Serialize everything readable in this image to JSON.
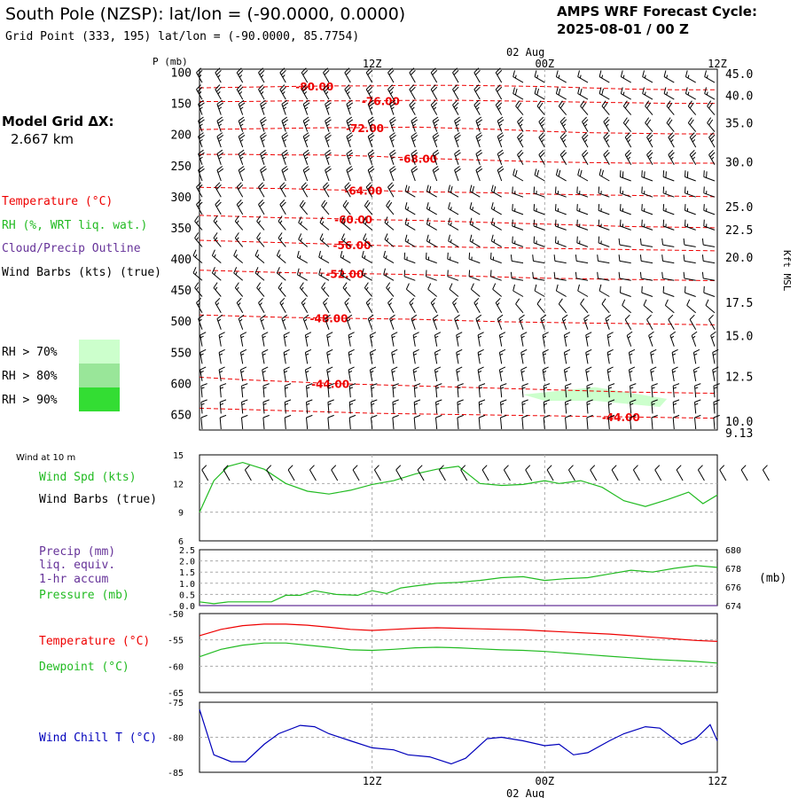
{
  "header": {
    "title": "South Pole (NZSP):  lat/lon = (-90.0000, 0.0000)",
    "subtitle": "Grid Point (333, 195) lat/lon = (-90.0000, 85.7754)",
    "cycle_label": "AMPS WRF Forecast Cycle:",
    "cycle_value": "2025-08-01 / 00  Z"
  },
  "model_grid": {
    "label": "Model Grid ΔX:",
    "value": "2.667 km"
  },
  "time_axis": {
    "ticks": [
      {
        "hour": 12,
        "label": "12Z"
      },
      {
        "hour": 24,
        "label": "00Z"
      },
      {
        "hour": 36,
        "label": "12Z"
      }
    ],
    "date_label": "02 Aug",
    "range_hours": [
      0,
      36
    ]
  },
  "legend": {
    "temperature": "Temperature (°C)",
    "rh": "RH (%, WRT liq. wat.)",
    "cloud": "Cloud/Precip Outline",
    "barbs": "Wind Barbs (kts) (true)",
    "rh_levels": [
      {
        "label": "RH > 70%",
        "color": "#ccffcc"
      },
      {
        "label": "RH > 80%",
        "color": "#99e699"
      },
      {
        "label": "RH > 90%",
        "color": "#33dd33"
      }
    ]
  },
  "colors": {
    "temp": "#ee0000",
    "green": "#22bb22",
    "blue": "#0000bb",
    "purple": "#663399"
  },
  "chart_data": [
    {
      "type": "contour",
      "ylabel": "P (mb)",
      "right_label": "Kft MSL",
      "pressure_range": [
        95,
        675
      ],
      "pressure_ticks": [
        100,
        150,
        200,
        250,
        300,
        350,
        400,
        450,
        500,
        550,
        600,
        650
      ],
      "height_ticks": [
        {
          "p": 102,
          "label": "45.0"
        },
        {
          "p": 137,
          "label": "40.0"
        },
        {
          "p": 181,
          "label": "35.0"
        },
        {
          "p": 244,
          "label": "30.0"
        },
        {
          "p": 316,
          "label": "25.0"
        },
        {
          "p": 353,
          "label": "22.5"
        },
        {
          "p": 397,
          "label": "20.0"
        },
        {
          "p": 470,
          "label": "17.5"
        },
        {
          "p": 523,
          "label": "15.0"
        },
        {
          "p": 589,
          "label": "12.5"
        },
        {
          "p": 661,
          "label": "10.0"
        },
        {
          "p": 679,
          "label": "9.13"
        }
      ],
      "isotherms": [
        {
          "value": -80,
          "label": "-80.00",
          "label_hour": 8,
          "p": [
            125,
            124,
            123,
            122,
            122,
            121,
            121,
            122,
            123,
            125,
            127,
            128,
            128
          ]
        },
        {
          "value": -76,
          "label": "-76.00",
          "label_hour": 12.6,
          "p": [
            147,
            147,
            146,
            146,
            146,
            145,
            145,
            146,
            147,
            148,
            149,
            150,
            150
          ]
        },
        {
          "value": -72,
          "label": "-72.00",
          "label_hour": 11.5,
          "p": [
            192,
            191,
            190,
            189,
            189,
            188,
            190,
            192,
            195,
            197,
            198,
            199,
            199
          ]
        },
        {
          "value": -68,
          "label": "-68.00",
          "label_hour": 15.2,
          "p": [
            232,
            232,
            233,
            233,
            235,
            238,
            240,
            242,
            244,
            245,
            246,
            246,
            246
          ]
        },
        {
          "value": -64,
          "label": "-64.00",
          "label_hour": 11.4,
          "p": [
            285,
            286,
            287,
            289,
            290,
            292,
            293,
            294,
            296,
            297,
            298,
            299,
            300
          ]
        },
        {
          "value": -60,
          "label": "-60.00",
          "label_hour": 10.7,
          "p": [
            330,
            332,
            334,
            335,
            337,
            338,
            340,
            342,
            344,
            346,
            348,
            349,
            350
          ]
        },
        {
          "value": -56,
          "label": "-56.00",
          "label_hour": 10.6,
          "p": [
            370,
            372,
            374,
            376,
            378,
            380,
            381,
            382,
            383,
            384,
            385,
            386,
            387
          ]
        },
        {
          "value": -52,
          "label": "-52.00",
          "label_hour": 10.1,
          "p": [
            418,
            420,
            422,
            423,
            424,
            425,
            427,
            429,
            431,
            432,
            433,
            434,
            435
          ]
        },
        {
          "value": -48,
          "label": "-48.00",
          "label_hour": 9.0,
          "p": [
            490,
            492,
            494,
            495,
            496,
            497,
            499,
            501,
            502,
            503,
            504,
            505,
            506
          ]
        },
        {
          "value": -44,
          "label": "-44.00",
          "label_hour": 9.1,
          "p": [
            590,
            594,
            597,
            600,
            602,
            604,
            606,
            608,
            610,
            612,
            614,
            615,
            616
          ]
        },
        {
          "value": -44,
          "label": "-44.00",
          "label_hour": 29.3,
          "p": [
            640,
            642,
            644,
            646,
            648,
            649,
            650,
            651,
            652,
            653,
            654,
            655,
            656
          ]
        }
      ],
      "rh_region": {
        "level": 70,
        "outline": [
          [
            22.5,
            618
          ],
          [
            27.5,
            606
          ],
          [
            32.5,
            625
          ],
          [
            32.0,
            638
          ],
          [
            27.5,
            628
          ],
          [
            24.0,
            628
          ]
        ]
      },
      "barb_levels": [
        108,
        135,
        160,
        187,
        212,
        240,
        266,
        292,
        320,
        345,
        372,
        398,
        426,
        452,
        478,
        505,
        532,
        560,
        588,
        614,
        640,
        665
      ],
      "barb_hours": [
        0,
        1.5,
        3,
        4.5,
        6,
        7.5,
        9,
        10.5,
        12,
        13.5,
        15,
        16.5,
        18,
        19.5,
        21,
        22.5,
        24,
        25.5,
        27,
        28.5,
        30,
        31.5,
        33,
        34.5,
        36
      ],
      "wind_kts": [
        [
          25,
          20,
          20,
          15,
          15
        ],
        [
          25,
          25,
          20,
          20,
          15
        ],
        [
          25,
          25,
          25,
          20,
          20
        ],
        [
          25,
          25,
          25,
          25,
          20
        ],
        [
          25,
          25,
          25,
          25,
          25
        ],
        [
          25,
          25,
          20,
          20,
          25
        ],
        [
          20,
          20,
          20,
          20,
          20
        ],
        [
          20,
          20,
          20,
          15,
          15
        ],
        [
          20,
          20,
          15,
          15,
          15
        ],
        [
          15,
          15,
          15,
          15,
          15
        ],
        [
          15,
          15,
          15,
          15,
          10
        ],
        [
          15,
          15,
          15,
          10,
          10
        ],
        [
          15,
          15,
          10,
          10,
          10
        ],
        [
          15,
          15,
          10,
          10,
          10
        ],
        [
          15,
          15,
          15,
          10,
          10
        ],
        [
          15,
          15,
          15,
          15,
          10
        ],
        [
          15,
          15,
          15,
          15,
          15
        ],
        [
          15,
          15,
          15,
          15,
          15
        ],
        [
          15,
          15,
          15,
          15,
          15
        ],
        [
          15,
          15,
          15,
          15,
          15
        ],
        [
          15,
          15,
          15,
          15,
          15
        ],
        [
          10,
          10,
          10,
          10,
          10
        ]
      ],
      "wind_dir_deg": [
        [
          330,
          330,
          330,
          300,
          300
        ],
        [
          330,
          330,
          330,
          300,
          300
        ],
        [
          340,
          340,
          330,
          320,
          320
        ],
        [
          340,
          340,
          340,
          330,
          320
        ],
        [
          340,
          340,
          340,
          330,
          330
        ],
        [
          340,
          340,
          340,
          330,
          330
        ],
        [
          340,
          340,
          340,
          300,
          290
        ],
        [
          330,
          330,
          300,
          290,
          290
        ],
        [
          330,
          320,
          300,
          290,
          290
        ],
        [
          320,
          310,
          300,
          290,
          290
        ],
        [
          320,
          310,
          300,
          290,
          280
        ],
        [
          310,
          300,
          290,
          280,
          280
        ],
        [
          310,
          300,
          290,
          280,
          280
        ],
        [
          320,
          320,
          310,
          300,
          290
        ],
        [
          330,
          330,
          330,
          320,
          310
        ],
        [
          340,
          340,
          340,
          340,
          330
        ],
        [
          350,
          350,
          350,
          350,
          340
        ],
        [
          350,
          350,
          350,
          350,
          350
        ],
        [
          350,
          350,
          350,
          350,
          350
        ],
        [
          355,
          355,
          355,
          355,
          355
        ],
        [
          355,
          355,
          355,
          355,
          355
        ],
        [
          355,
          355,
          355,
          355,
          355
        ]
      ]
    },
    {
      "type": "line",
      "title": "Wind at 10 m",
      "series": [
        {
          "name": "Wind Spd (kts)",
          "color": "#22bb22",
          "x": [
            0,
            1,
            2,
            3,
            4.5,
            6,
            7.5,
            9,
            10.5,
            12,
            13.5,
            15,
            16.5,
            18,
            19.5,
            21,
            22.5,
            24,
            25,
            26.5,
            28,
            29.5,
            31,
            32.5,
            34,
            35,
            36
          ],
          "y": [
            9.0,
            12.3,
            13.8,
            14.2,
            13.5,
            12.0,
            11.2,
            10.9,
            11.3,
            11.9,
            12.3,
            13.0,
            13.5,
            13.8,
            12.0,
            11.8,
            11.9,
            12.3,
            12.0,
            12.3,
            11.6,
            10.2,
            9.6,
            10.3,
            11.1,
            9.9,
            10.8
          ]
        }
      ],
      "barbs_label": "Wind Barbs (true)",
      "barb_kts": 10,
      "barb_dir_deg": 330,
      "ylim": [
        6,
        15
      ],
      "yticks": [
        6,
        9,
        12,
        15
      ]
    },
    {
      "type": "line",
      "series": [
        {
          "name": "Precip (mm)",
          "color": "#663399",
          "axis": "left",
          "x": [
            0,
            36
          ],
          "y": [
            0,
            0
          ]
        },
        {
          "name": "Pressure (mb)",
          "color": "#22bb22",
          "axis": "right",
          "x": [
            0,
            1,
            2,
            3.5,
            5,
            6,
            7,
            8,
            9.5,
            11,
            12,
            13,
            14,
            15,
            16.5,
            18,
            19.5,
            21,
            22.5,
            24,
            25.5,
            27,
            28.5,
            30,
            31.5,
            33,
            34.5,
            36
          ],
          "y": [
            674.4,
            674.2,
            674.4,
            674.4,
            674.4,
            675.1,
            675.1,
            675.6,
            675.2,
            675.1,
            675.6,
            675.3,
            675.9,
            676.1,
            676.4,
            676.5,
            676.7,
            677.0,
            677.1,
            676.7,
            676.9,
            677.0,
            677.4,
            677.8,
            677.6,
            678.0,
            678.3,
            678.1
          ]
        }
      ],
      "left_labels": [
        "Precip (mm)",
        "liq. equiv.",
        "1-hr accum"
      ],
      "right_axis_label": "(mb)",
      "ylim_left": [
        0,
        2.5
      ],
      "yticks_left": [
        "0.0",
        "0.5",
        "1.0",
        "1.5",
        "2.0",
        "2.5"
      ],
      "ylim_right": [
        674,
        680
      ],
      "yticks_right": [
        "674",
        "676",
        "678",
        "680"
      ]
    },
    {
      "type": "line",
      "series": [
        {
          "name": "Temperature (°C)",
          "color": "#ee0000",
          "x": [
            0,
            1.5,
            3,
            4.5,
            6,
            7.5,
            9,
            10.5,
            12,
            13.5,
            15,
            16.5,
            18,
            19.5,
            21,
            22.5,
            24,
            25.5,
            27,
            28.5,
            30,
            31.5,
            33,
            34.5,
            36
          ],
          "y": [
            -54.2,
            -53.0,
            -52.3,
            -52.0,
            -52.0,
            -52.2,
            -52.6,
            -53.0,
            -53.2,
            -53.0,
            -52.8,
            -52.7,
            -52.8,
            -52.9,
            -53.0,
            -53.1,
            -53.3,
            -53.5,
            -53.7,
            -53.9,
            -54.2,
            -54.5,
            -54.8,
            -55.1,
            -55.3
          ]
        },
        {
          "name": "Dewpoint (°C)",
          "color": "#22bb22",
          "x": [
            0,
            1.5,
            3,
            4.5,
            6,
            7.5,
            9,
            10.5,
            12,
            13.5,
            15,
            16.5,
            18,
            19.5,
            21,
            22.5,
            24,
            25.5,
            27,
            28.5,
            30,
            31.5,
            33,
            34.5,
            36
          ],
          "y": [
            -58.2,
            -56.8,
            -56.0,
            -55.6,
            -55.6,
            -56.0,
            -56.4,
            -56.9,
            -57.0,
            -56.8,
            -56.5,
            -56.4,
            -56.5,
            -56.7,
            -56.9,
            -57.0,
            -57.2,
            -57.5,
            -57.8,
            -58.1,
            -58.4,
            -58.7,
            -58.9,
            -59.1,
            -59.4
          ]
        }
      ],
      "ylim": [
        -65,
        -50
      ],
      "yticks": [
        -65,
        -60,
        -55,
        -50
      ]
    },
    {
      "type": "line",
      "series": [
        {
          "name": "Wind Chill T (°C)",
          "color": "#0000bb",
          "x": [
            0,
            1,
            2.2,
            3.2,
            4.5,
            5.5,
            7,
            8,
            9,
            10.5,
            12,
            13.5,
            14.5,
            16,
            17.5,
            18.5,
            20,
            21,
            22.5,
            24,
            25,
            26,
            27,
            28.5,
            29.5,
            31,
            32,
            33.5,
            34.5,
            35.5,
            36
          ],
          "y": [
            -76.0,
            -82.5,
            -83.5,
            -83.5,
            -81.0,
            -79.5,
            -78.3,
            -78.5,
            -79.5,
            -80.5,
            -81.5,
            -81.8,
            -82.5,
            -82.8,
            -83.8,
            -83.0,
            -80.2,
            -80.0,
            -80.5,
            -81.2,
            -81.0,
            -82.5,
            -82.2,
            -80.5,
            -79.5,
            -78.5,
            -78.7,
            -81.0,
            -80.2,
            -78.2,
            -80.5
          ]
        }
      ],
      "ylim": [
        -85,
        -75
      ],
      "yticks": [
        -85,
        -80,
        -75
      ]
    }
  ]
}
